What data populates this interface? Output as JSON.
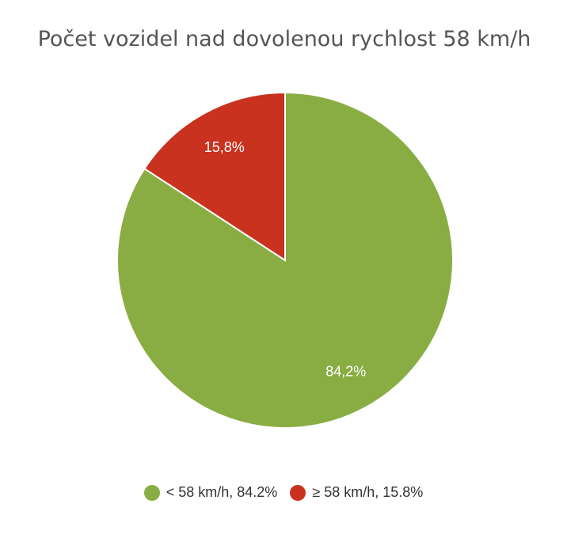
{
  "chart_data": {
    "type": "pie",
    "title": "Počet vozidel nad dovolenou rychlost 58 km/h",
    "categories": [
      "< 58 km/h, 84.2%",
      "≥ 58 km/h, 15.8%"
    ],
    "values": [
      84.2,
      15.8
    ],
    "value_labels": [
      "84,2%",
      "15,8%"
    ],
    "colors": [
      "#8aad43",
      "#c8321f"
    ],
    "legend": "bottom"
  }
}
